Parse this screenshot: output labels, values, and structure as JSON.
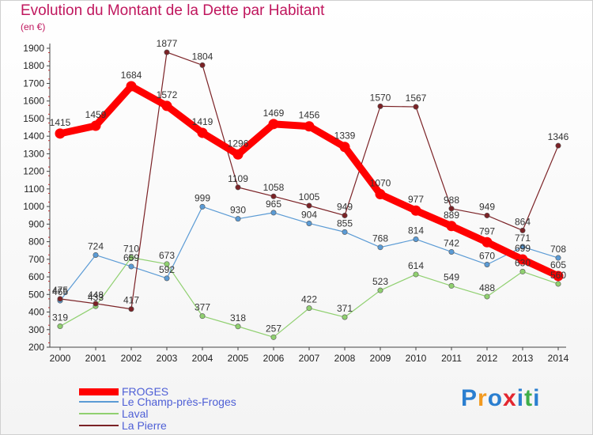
{
  "title": "Evolution du Montant de la Dette par Habitant",
  "unit": "(en €)",
  "logo": "Proxiti",
  "chart_data": {
    "type": "line",
    "x": [
      "2000",
      "2001",
      "2002",
      "2003",
      "2004",
      "2005",
      "2006",
      "2007",
      "2008",
      "2009",
      "2010",
      "2011",
      "2012",
      "2013",
      "2014"
    ],
    "ylim": [
      200,
      1900
    ],
    "yticks": [
      200,
      300,
      400,
      500,
      600,
      700,
      800,
      900,
      1000,
      1100,
      1200,
      1300,
      1400,
      1500,
      1600,
      1700,
      1800,
      1900
    ],
    "grid": false,
    "legend_position": "bottom-left",
    "series": [
      {
        "name": "FROGES",
        "color": "#ff0000",
        "values": [
          1415,
          1459,
          1684,
          1572,
          1419,
          1296,
          1469,
          1456,
          1339,
          1070,
          977,
          889,
          797,
          699,
          605
        ]
      },
      {
        "name": "Le Champ-près-Froges",
        "color": "#5b9bd5",
        "values": [
          465,
          724,
          659,
          592,
          999,
          930,
          965,
          904,
          855,
          768,
          814,
          742,
          670,
          771,
          708
        ]
      },
      {
        "name": "Laval",
        "color": "#90d070",
        "values": [
          319,
          433,
          710,
          673,
          377,
          318,
          257,
          422,
          371,
          523,
          614,
          549,
          488,
          630,
          560
        ]
      },
      {
        "name": "La Pierre",
        "color": "#7b2226",
        "values": [
          475,
          448,
          417,
          1877,
          1804,
          1109,
          1058,
          1005,
          949,
          1570,
          1567,
          988,
          949,
          864,
          1346
        ]
      }
    ]
  }
}
